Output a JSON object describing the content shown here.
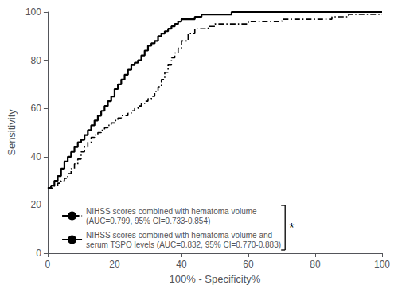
{
  "chart_data": {
    "type": "step",
    "xlabel": "100% - Specificity%",
    "ylabel": "Sensitivity",
    "x": [
      0,
      1,
      2,
      3,
      4,
      5,
      6,
      7,
      8,
      9,
      10,
      11,
      12,
      13,
      14,
      15,
      16,
      17,
      18,
      19,
      20,
      21,
      22,
      23,
      24,
      25,
      26,
      27,
      28,
      29,
      30,
      31,
      32,
      33,
      34,
      35,
      36,
      37,
      38,
      39,
      40,
      42,
      44,
      46,
      48,
      50,
      55,
      60,
      65,
      70,
      75,
      80,
      85,
      90,
      95,
      100
    ],
    "series": [
      {
        "name": "NIHSS scores combined with hematoma volume\n(AUC=0.799, 95% CI=0.733-0.854)",
        "color": "#000000",
        "line_style": "dashdot",
        "values": [
          27,
          27,
          28,
          29,
          30,
          31,
          33,
          35,
          37,
          39,
          42,
          44,
          46,
          48,
          49,
          50,
          51,
          52,
          53,
          54,
          55,
          56,
          57,
          57,
          58,
          59,
          60,
          61,
          62,
          63,
          64,
          65,
          67,
          69,
          72,
          75,
          78,
          81,
          83,
          85,
          88,
          91,
          93,
          93,
          94,
          95,
          95,
          96,
          96,
          97,
          97,
          97,
          98,
          99,
          99,
          99
        ]
      },
      {
        "name": "NIHSS scores combined with hematoma volume and\nserum TSPO levels (AUC=0.832, 95% CI=0.770-0.883)",
        "color": "#000000",
        "line_style": "solid",
        "values": [
          27,
          28,
          30,
          32,
          35,
          38,
          40,
          42,
          44,
          46,
          47,
          49,
          51,
          53,
          55,
          57,
          59,
          61,
          63,
          65,
          68,
          70,
          72,
          74,
          76,
          78,
          79,
          80,
          82,
          84,
          86,
          87,
          88,
          90,
          91,
          92,
          93,
          94,
          95,
          96,
          97,
          97,
          98,
          99,
          99,
          99,
          100,
          100,
          100,
          100,
          100,
          100,
          100,
          100,
          100,
          100
        ]
      }
    ],
    "xlim": [
      0,
      100
    ],
    "ylim": [
      0,
      100
    ],
    "xticks": [
      0,
      20,
      40,
      60,
      80,
      100
    ],
    "yticks": [
      0,
      20,
      40,
      60,
      80,
      100
    ],
    "grid": false,
    "legend": "lower center",
    "annotations": [
      {
        "text": "*"
      }
    ]
  }
}
